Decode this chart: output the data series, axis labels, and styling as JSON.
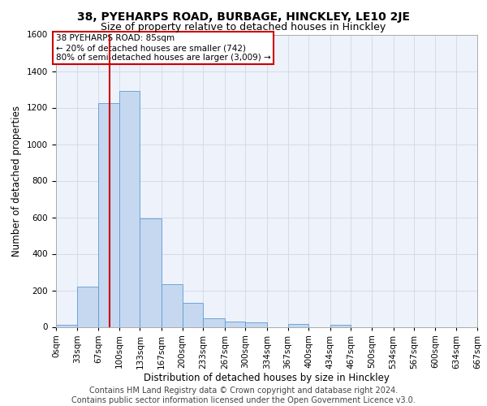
{
  "title": "38, PYEHARPS ROAD, BURBAGE, HINCKLEY, LE10 2JE",
  "subtitle": "Size of property relative to detached houses in Hinckley",
  "xlabel": "Distribution of detached houses by size in Hinckley",
  "ylabel": "Number of detached properties",
  "footer_line1": "Contains HM Land Registry data © Crown copyright and database right 2024.",
  "footer_line2": "Contains public sector information licensed under the Open Government Licence v3.0.",
  "bin_edges": [
    0,
    33,
    67,
    100,
    133,
    167,
    200,
    233,
    267,
    300,
    334,
    367,
    400,
    434,
    467,
    500,
    534,
    567,
    600,
    634,
    667
  ],
  "bar_values": [
    10,
    220,
    1225,
    1290,
    595,
    235,
    130,
    45,
    30,
    25,
    0,
    15,
    0,
    12,
    0,
    0,
    0,
    0,
    0,
    0
  ],
  "bar_color": "#c5d8f0",
  "bar_edge_color": "#5b9bd5",
  "grid_color": "#d0d8e8",
  "background_color": "#eef2fa",
  "vline_x": 85,
  "vline_color": "#cc0000",
  "annotation_text": "38 PYEHARPS ROAD: 85sqm\n← 20% of detached houses are smaller (742)\n80% of semi-detached houses are larger (3,009) →",
  "annotation_box_color": "#cc0000",
  "ylim": [
    0,
    1600
  ],
  "yticks": [
    0,
    200,
    400,
    600,
    800,
    1000,
    1200,
    1400,
    1600
  ],
  "tick_labels": [
    "0sqm",
    "33sqm",
    "67sqm",
    "100sqm",
    "133sqm",
    "167sqm",
    "200sqm",
    "233sqm",
    "267sqm",
    "300sqm",
    "334sqm",
    "367sqm",
    "400sqm",
    "434sqm",
    "467sqm",
    "500sqm",
    "534sqm",
    "567sqm",
    "600sqm",
    "634sqm",
    "667sqm"
  ],
  "title_fontsize": 10,
  "subtitle_fontsize": 9,
  "label_fontsize": 8.5,
  "tick_fontsize": 7.5,
  "footer_fontsize": 7.0,
  "annotation_fontsize": 7.5
}
